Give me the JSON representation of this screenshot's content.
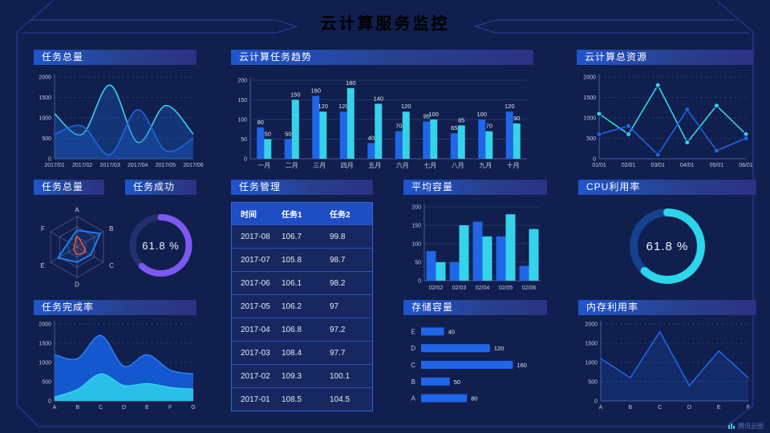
{
  "header": {
    "title": "云计算服务监控"
  },
  "footer": {
    "brand": "腾讯云图"
  },
  "colors": {
    "background": "#101f4d",
    "panel_header_accent": "#1f55cd",
    "series_blue": "#1f66e8",
    "series_cyan": "#35d3ea",
    "gauge_purple": "#7d58f2",
    "gauge_cyan": "#2bd5ea",
    "radar_blue": "#1f7df2",
    "radar_red": "#f2583c"
  },
  "panels": {
    "tasks_total": {
      "title": "任务总量",
      "chart_data": {
        "type": "line",
        "x": [
          "2017/01",
          "2017/02",
          "2017/03",
          "2017/04",
          "2017/05",
          "2017/06"
        ],
        "ymax": 2000,
        "yticks": [
          0,
          500,
          1000,
          1500,
          2000
        ],
        "grid": "dashed",
        "series": [
          {
            "name": "cyan",
            "color": "#35d3ea",
            "smooth": true,
            "fill": "rgba(30,95,205,0.32)",
            "values": [
              1100,
              600,
              1800,
              400,
              1300,
              600
            ]
          },
          {
            "name": "blue",
            "color": "#1f66e8",
            "smooth": true,
            "fill": "rgba(30,95,205,0.32)",
            "values": [
              600,
              800,
              100,
              1200,
              200,
              500
            ]
          }
        ]
      }
    },
    "task_trend": {
      "title": "云计算任务趋势",
      "chart_data": {
        "type": "bar",
        "show_labels": true,
        "barw": 9,
        "categories": [
          "一月",
          "二月",
          "三月",
          "四月",
          "五月",
          "六月",
          "七月",
          "八月",
          "九月",
          "十月"
        ],
        "ymax": 200,
        "yticks": [
          0,
          50,
          100,
          150,
          200
        ],
        "xfs": 8,
        "series": [
          {
            "name": "blue",
            "color": "#1f66e8",
            "values": [
              80,
              50,
              160,
              120,
              40,
              70,
              95,
              65,
              100,
              120
            ]
          },
          {
            "name": "cyan",
            "color": "#35d3ea",
            "values": [
              50,
              150,
              120,
              180,
              140,
              120,
              100,
              85,
              70,
              90
            ]
          }
        ]
      }
    },
    "total_resources": {
      "title": "云计算总资源",
      "chart_data": {
        "type": "line",
        "x": [
          "01/01",
          "02/01",
          "03/01",
          "04/01",
          "05/01",
          "06/01"
        ],
        "ymax": 2000,
        "yticks": [
          0,
          500,
          1000,
          1500,
          2000
        ],
        "grid": "dashed",
        "series": [
          {
            "name": "cyan",
            "color": "#35d3ea",
            "markers": true,
            "values": [
              1100,
              600,
              1800,
              400,
              1300,
              600
            ]
          },
          {
            "name": "blue",
            "color": "#1f66e8",
            "markers": true,
            "values": [
              600,
              800,
              100,
              1200,
              200,
              500
            ]
          }
        ]
      }
    },
    "task_radar": {
      "title": "任务总量",
      "chart_data": {
        "type": "radar",
        "axes": [
          "A",
          "B",
          "C",
          "D",
          "E",
          "F"
        ],
        "max": 100,
        "series": [
          {
            "name": "blue",
            "color": "#1f7df2",
            "smooth": false,
            "values": [
              55,
              88,
              52,
              50,
              72,
              32
            ]
          },
          {
            "name": "red",
            "color": "#f2583c",
            "smooth": true,
            "values": [
              34,
              20,
              30,
              24,
              12,
              9
            ]
          }
        ]
      }
    },
    "task_success": {
      "title": "任务成功",
      "display": "61.8 %",
      "percent": 61.8,
      "color": "#7d58f2",
      "track": "#22306e"
    },
    "task_table": {
      "title": "任务管理",
      "columns": [
        "时间",
        "任务1",
        "任务2"
      ],
      "rows": [
        [
          "2017-08",
          "106.7",
          "99.8"
        ],
        [
          "2017-07",
          "105.8",
          "98.7"
        ],
        [
          "2017-06",
          "106.1",
          "98.2"
        ],
        [
          "2017-05",
          "106.2",
          "97"
        ],
        [
          "2017-04",
          "106.8",
          "97.2"
        ],
        [
          "2017-03",
          "108.4",
          "97.7"
        ],
        [
          "2017-02",
          "109.3",
          "100.1"
        ],
        [
          "2017-01",
          "108.5",
          "104.5"
        ]
      ]
    },
    "avg_capacity": {
      "title": "平均容量",
      "chart_data": {
        "type": "bar",
        "show_labels": false,
        "barw": 12,
        "categories": [
          "02/02",
          "02/03",
          "02/04",
          "02/05",
          "02/06"
        ],
        "ymax": 200,
        "yticks": [
          0,
          50,
          100,
          150,
          200
        ],
        "xfs": 7,
        "series": [
          {
            "name": "blue",
            "color": "#1f66e8",
            "values": [
              80,
              50,
              160,
              120,
              40
            ]
          },
          {
            "name": "cyan",
            "color": "#35d3ea",
            "values": [
              50,
              150,
              120,
              180,
              140
            ]
          }
        ]
      }
    },
    "cpu": {
      "title": "CPU利用率",
      "display": "61.8 %",
      "percent": 61.8,
      "color": "#2bd5ea",
      "track": "#15418f"
    },
    "completion": {
      "title": "任务完成率",
      "chart_data": {
        "type": "line",
        "x": [
          "A",
          "B",
          "C",
          "D",
          "E",
          "F",
          "G"
        ],
        "ymax": 2000,
        "yticks": [
          0,
          500,
          1000,
          1500,
          2000
        ],
        "grid": "dashed",
        "series": [
          {
            "name": "outer-blue",
            "color": "#2e7bf0",
            "smooth": true,
            "fill": "#1557cf",
            "values": [
              1200,
              1100,
              1700,
              900,
              1200,
              800,
              700
            ]
          },
          {
            "name": "inner-cyan",
            "color": "#35ccf0",
            "smooth": true,
            "fill": "#29bfe8",
            "values": [
              100,
              300,
              700,
              400,
              450,
              350,
              300
            ]
          }
        ]
      }
    },
    "storage": {
      "title": "存储容量",
      "chart_data": {
        "type": "hbar",
        "categories": [
          "E",
          "D",
          "C",
          "B",
          "A"
        ],
        "values": [
          40,
          120,
          160,
          50,
          80
        ],
        "color": "#1f66e8",
        "xmax": 172
      }
    },
    "memory": {
      "title": "内存利用率",
      "chart_data": {
        "type": "line",
        "x": [
          "A",
          "B",
          "C",
          "D",
          "E",
          "F"
        ],
        "ymax": 2000,
        "yticks": [
          0,
          500,
          1000,
          1500,
          2000
        ],
        "grid": "dashed",
        "series": [
          {
            "name": "blue",
            "color": "#1f66e8",
            "smooth": false,
            "fill": "rgba(31,102,232,0.18)",
            "values": [
              1100,
              600,
              1800,
              400,
              1300,
              600
            ]
          }
        ]
      }
    }
  }
}
